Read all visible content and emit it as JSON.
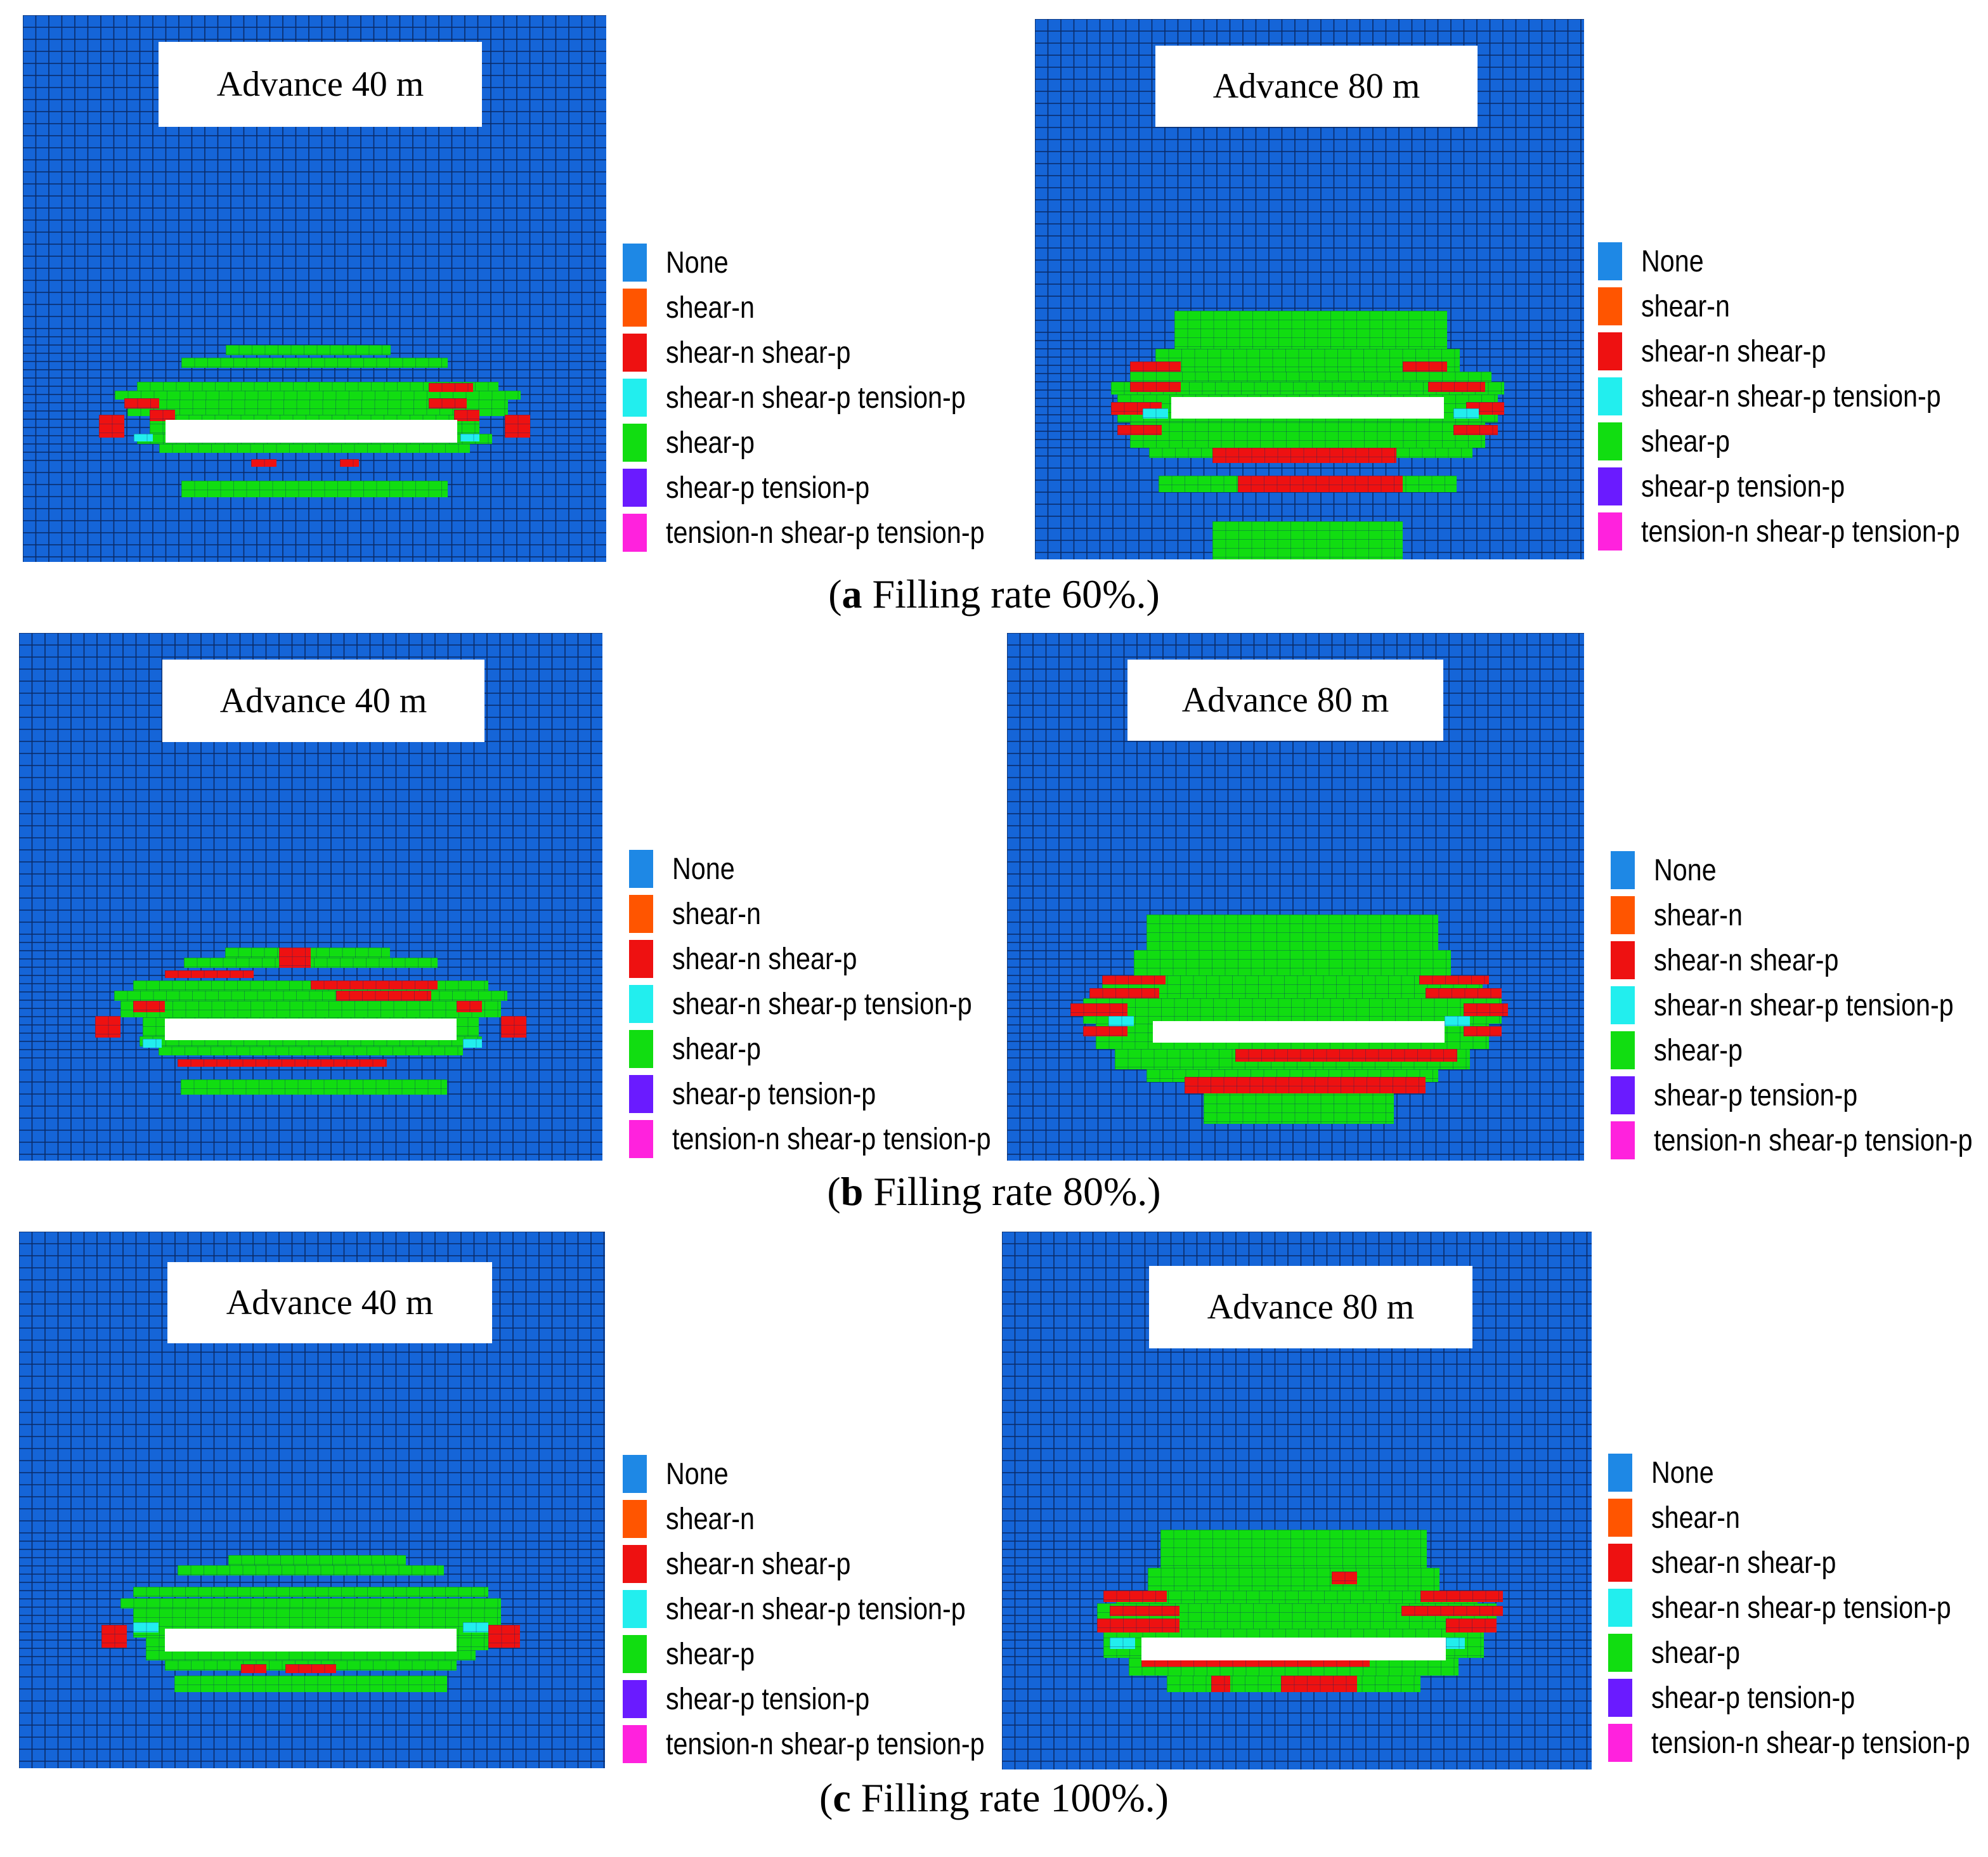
{
  "legend": {
    "items": [
      {
        "label": "None",
        "color": "#1e88e5"
      },
      {
        "label": "shear-n",
        "color": "#ff5500"
      },
      {
        "label": "shear-n shear-p",
        "color": "#ee1111"
      },
      {
        "label": "shear-n shear-p tension-p",
        "color": "#22eeee"
      },
      {
        "label": "shear-p",
        "color": "#11dd11"
      },
      {
        "label": "shear-p tension-p",
        "color": "#6a1bff"
      },
      {
        "label": "tension-n shear-p tension-p",
        "color": "#ff22dd"
      }
    ]
  },
  "rows": [
    {
      "caption_letter": "a",
      "caption_text": " Filling rate 60%.",
      "left_title": "Advance 40 m",
      "right_title": "Advance 80 m"
    },
    {
      "caption_letter": "b",
      "caption_text": " Filling rate 80%.",
      "left_title": "Advance 40 m",
      "right_title": "Advance 80 m"
    },
    {
      "caption_letter": "c",
      "caption_text": " Filling rate 100%.",
      "left_title": "Advance 40 m",
      "right_title": "Advance 80 m"
    }
  ]
}
